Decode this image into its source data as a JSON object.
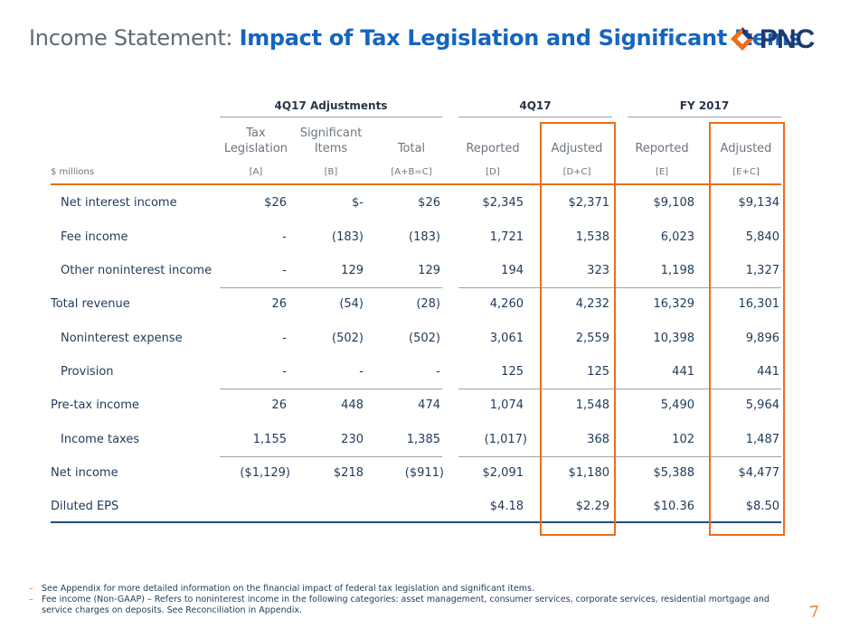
{
  "title": {
    "light": "Income Statement: ",
    "bold": "Impact of Tax Legislation and Significant Items"
  },
  "logo": {
    "text": "PNC"
  },
  "groups": [
    "4Q17 Adjustments",
    "4Q17",
    "FY 2017"
  ],
  "columns": [
    {
      "line1": "Tax",
      "line2": "Legislation",
      "sub": "[A]"
    },
    {
      "line1": "Significant",
      "line2": "Items",
      "sub": "[B]"
    },
    {
      "line1": "",
      "line2": "Total",
      "sub": "[A+B=C]"
    },
    {
      "line1": "",
      "line2": "Reported",
      "sub": "[D]"
    },
    {
      "line1": "",
      "line2": "Adjusted",
      "sub": "[D+C]"
    },
    {
      "line1": "",
      "line2": "Reported",
      "sub": "[E]"
    },
    {
      "line1": "",
      "line2": "Adjusted",
      "sub": "[E+C]"
    }
  ],
  "units": "$ millions",
  "rows": [
    {
      "label": "Net interest income",
      "values": [
        "$26",
        "$-",
        "$26",
        "$2,345",
        "$2,371",
        "$9,108",
        "$9,134"
      ]
    },
    {
      "label": "Fee income",
      "values": [
        "-",
        "(183)",
        "(183)",
        "1,721",
        "1,538",
        "6,023",
        "5,840"
      ]
    },
    {
      "label": "Other noninterest income",
      "values": [
        "-",
        "129",
        "129",
        "194",
        "323",
        "1,198",
        "1,327"
      ]
    },
    {
      "label": "Total revenue",
      "values": [
        "26",
        "(54)",
        "(28)",
        "4,260",
        "4,232",
        "16,329",
        "16,301"
      ]
    },
    {
      "label": "Noninterest expense",
      "values": [
        "-",
        "(502)",
        "(502)",
        "3,061",
        "2,559",
        "10,398",
        "9,896"
      ]
    },
    {
      "label": "Provision",
      "values": [
        "-",
        "-",
        "-",
        "125",
        "125",
        "441",
        "441"
      ]
    },
    {
      "label": "Pre-tax income",
      "values": [
        "26",
        "448",
        "474",
        "1,074",
        "1,548",
        "5,490",
        "5,964"
      ]
    },
    {
      "label": "Income taxes",
      "values": [
        "1,155",
        "230",
        "1,385",
        "(1,017)",
        "368",
        "102",
        "1,487"
      ]
    },
    {
      "label": "Net income",
      "values": [
        "($1,129)",
        "$218",
        "($911)",
        "$2,091",
        "$1,180",
        "$5,388",
        "$4,477"
      ]
    },
    {
      "label": "Diluted EPS",
      "values": [
        "",
        "",
        "",
        "$4.18",
        "$2.29",
        "$10.36",
        "$8.50"
      ]
    }
  ],
  "footnotes": [
    "See Appendix for more detailed information on the financial impact of federal tax legislation and significant items.",
    "Fee income (Non-GAAP) – Refers to noninterest income in the following categories: asset management, consumer services, corporate services, residential mortgage and service charges on deposits. See Reconciliation in Appendix."
  ],
  "page_number": "7",
  "colors": {
    "accent": "#ef6c1a",
    "title_blue": "#1565c0",
    "text": "#1f3a5a"
  }
}
